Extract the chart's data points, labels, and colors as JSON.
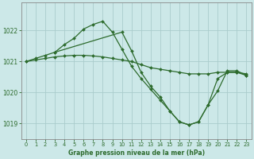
{
  "background_color": "#cce8e8",
  "grid_color": "#aacccc",
  "line_color": "#2d6b2d",
  "marker_color": "#2d6b2d",
  "xlabel": "Graphe pression niveau de la mer (hPa)",
  "xlim": [
    -0.5,
    23.5
  ],
  "ylim": [
    1018.5,
    1022.9
  ],
  "yticks": [
    1019,
    1020,
    1021,
    1022
  ],
  "xticks": [
    0,
    1,
    2,
    3,
    4,
    5,
    6,
    7,
    8,
    9,
    10,
    11,
    12,
    13,
    14,
    15,
    16,
    17,
    18,
    19,
    20,
    21,
    22,
    23
  ],
  "series": [
    {
      "x": [
        0,
        1,
        2,
        3,
        4,
        5,
        6,
        7,
        8,
        9,
        10,
        11,
        12,
        13,
        14,
        15,
        16,
        17,
        18,
        19,
        20,
        21,
        22,
        23
      ],
      "y": [
        1021.0,
        1021.05,
        1021.1,
        1021.15,
        1021.18,
        1021.2,
        1021.2,
        1021.18,
        1021.15,
        1021.1,
        1021.05,
        1021.0,
        1020.9,
        1020.8,
        1020.75,
        1020.7,
        1020.65,
        1020.6,
        1020.6,
        1020.6,
        1020.65,
        1020.65,
        1020.65,
        1020.6
      ]
    },
    {
      "x": [
        0,
        1,
        2,
        3,
        4,
        5,
        6,
        7,
        8,
        9,
        10,
        11,
        12,
        13,
        14,
        15,
        16,
        17,
        18,
        19,
        20,
        21,
        22,
        23
      ],
      "y": [
        1021.0,
        1021.1,
        1021.2,
        1021.3,
        1021.55,
        1021.75,
        1022.05,
        1022.2,
        1022.3,
        1021.95,
        1021.4,
        1020.85,
        1020.45,
        1020.1,
        1019.75,
        1019.4,
        1019.05,
        1018.95,
        1019.05,
        1019.6,
        1020.45,
        1020.65,
        1020.65,
        1020.55
      ]
    },
    {
      "x": [
        3,
        10,
        11,
        12,
        13,
        14,
        15,
        16,
        17,
        18,
        19,
        20,
        21,
        22,
        23
      ],
      "y": [
        1021.3,
        1021.95,
        1021.35,
        1020.65,
        1020.2,
        1019.85,
        1019.4,
        1019.05,
        1018.95,
        1019.05,
        1019.6,
        1020.05,
        1020.7,
        1020.7,
        1020.55
      ]
    }
  ]
}
